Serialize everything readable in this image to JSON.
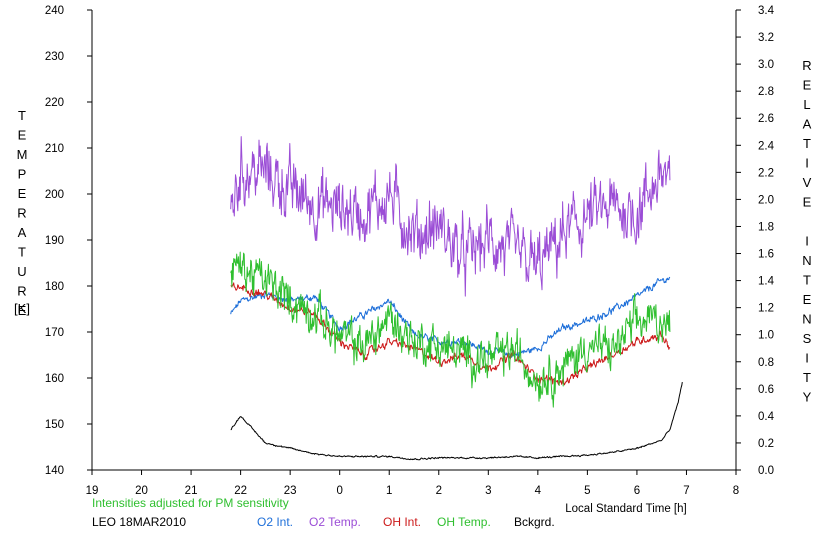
{
  "chart_data": {
    "type": "line",
    "title": "",
    "xlabel": "Local Standard Time [h]",
    "ylabel_left": "TEMPERATURE",
    "ylabel_left_unit": "[K]",
    "ylabel_right": "RELATIVE INTENSITY",
    "x_tick_labels": [
      "19",
      "20",
      "21",
      "22",
      "23",
      "0",
      "1",
      "2",
      "3",
      "4",
      "5",
      "6",
      "7",
      "8"
    ],
    "x_range_hours_since_19LT": [
      0,
      13
    ],
    "ylim_left": [
      140,
      240
    ],
    "y_ticks_left": [
      "140",
      "150",
      "160",
      "170",
      "180",
      "190",
      "200",
      "210",
      "220",
      "230",
      "240"
    ],
    "ylim_right": [
      0.0,
      3.4
    ],
    "y_ticks_right": [
      "0.0",
      "0.2",
      "0.4",
      "0.6",
      "0.8",
      "1.0",
      "1.2",
      "1.4",
      "1.6",
      "1.8",
      "2.0",
      "2.2",
      "2.4",
      "2.6",
      "2.8",
      "3.0",
      "3.2",
      "3.4"
    ],
    "grid": false,
    "note": "Intensities adjusted for PM sensitivity",
    "station_date": "LEO 18MAR2010",
    "x": [
      "21:48",
      "22:00",
      "22:30",
      "23:00",
      "23:30",
      "00:00",
      "00:30",
      "01:00",
      "01:30",
      "02:00",
      "02:30",
      "03:00",
      "03:30",
      "04:00",
      "04:30",
      "05:00",
      "05:30",
      "06:00",
      "06:30",
      "06:40",
      "06:50",
      "06:55"
    ],
    "series": [
      {
        "name": "O2 Int.",
        "axis": "right",
        "color": "#1e6fd9",
        "values": [
          1.15,
          1.25,
          1.3,
          1.25,
          1.28,
          1.05,
          1.15,
          1.25,
          1.0,
          0.95,
          0.95,
          0.88,
          0.85,
          0.9,
          1.05,
          1.1,
          1.18,
          1.28,
          1.4,
          1.42,
          null,
          null
        ]
      },
      {
        "name": "O2 Temp.",
        "axis": "left",
        "color": "#9b4dd6",
        "values": [
          195,
          205,
          205,
          201,
          198,
          197,
          196,
          200,
          191,
          193,
          186,
          190,
          187,
          184,
          191,
          195,
          197,
          196,
          205,
          203,
          null,
          null
        ]
      },
      {
        "name": "OH Int.",
        "axis": "right",
        "color": "#cc1a1a",
        "values": [
          1.35,
          1.35,
          1.3,
          1.2,
          1.15,
          0.95,
          0.85,
          0.95,
          0.9,
          0.8,
          0.85,
          0.75,
          0.85,
          0.68,
          0.65,
          0.75,
          0.85,
          0.95,
          1.0,
          0.9,
          null,
          null
        ]
      },
      {
        "name": "OH Temp.",
        "axis": "left",
        "color": "#2fbf2f",
        "values": [
          184,
          184,
          181,
          177,
          174,
          169,
          167,
          173,
          168,
          167,
          165,
          164,
          166,
          160,
          162,
          167,
          166,
          172,
          173,
          170,
          null,
          null
        ]
      },
      {
        "name": "Bckgrd.",
        "axis": "right",
        "color": "#000000",
        "values": [
          0.3,
          0.4,
          0.2,
          0.16,
          0.12,
          0.1,
          0.1,
          0.1,
          0.08,
          0.09,
          0.09,
          0.09,
          0.1,
          0.09,
          0.1,
          0.11,
          0.13,
          0.16,
          0.22,
          0.3,
          0.5,
          0.65
        ]
      }
    ]
  },
  "legend": [
    {
      "label": "O2 Int.",
      "color": "#1e6fd9"
    },
    {
      "label": "O2 Temp.",
      "color": "#9b4dd6"
    },
    {
      "label": "OH Int.",
      "color": "#cc1a1a"
    },
    {
      "label": "OH Temp.",
      "color": "#2fbf2f"
    },
    {
      "label": "Bckgrd.",
      "color": "#000000"
    }
  ],
  "colors": {
    "note": "#2fbf2f",
    "axis": "#000000",
    "background": "#ffffff"
  }
}
